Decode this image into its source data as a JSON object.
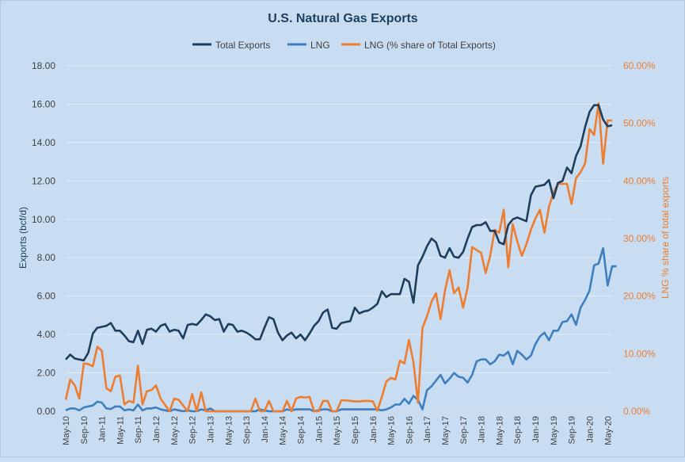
{
  "chart_data": {
    "type": "line",
    "title": "U.S. Natural Gas Exports",
    "ylabel": "Exports (bcf/d)",
    "y2label": "LNG  % share of total exports",
    "ylim": [
      0,
      18
    ],
    "y2lim": [
      0,
      0.6
    ],
    "yticks": [
      "0.00",
      "2.00",
      "4.00",
      "6.00",
      "8.00",
      "10.00",
      "12.00",
      "14.00",
      "16.00",
      "18.00"
    ],
    "y2ticks": [
      "0.00%",
      "10.00%",
      "20.00%",
      "30.00%",
      "40.00%",
      "50.00%",
      "60.00%"
    ],
    "grid": "horizontal",
    "legend_position": "top",
    "colors": {
      "total": "#1f3d5c",
      "lng": "#3f7fbf",
      "share": "#ed7d31",
      "grid": "#e4edf6",
      "axis_text": "#404040",
      "title": "#1f3d5c"
    },
    "x_tick_labels": [
      "May-10",
      "Sep-10",
      "Jan-11",
      "May-11",
      "Sep-11",
      "Jan-12",
      "May-12",
      "Sep-12",
      "Jan-13",
      "May-13",
      "Sep-13",
      "Jan-14",
      "May-14",
      "Sep-14",
      "Jan-15",
      "May-15",
      "Sep-15",
      "Jan-16",
      "May-16",
      "Sep-16",
      "Jan-17",
      "May-17",
      "Sep-17",
      "Jan-18",
      "May-18",
      "Sep-18",
      "Jan-19",
      "May-19",
      "Sep-19",
      "Jan-20",
      "May-20"
    ],
    "series": [
      {
        "name": "Total Exports",
        "axis": "left",
        "values": [
          2.7,
          2.95,
          2.75,
          2.7,
          2.65,
          3.05,
          4.05,
          4.35,
          4.4,
          4.45,
          4.6,
          4.2,
          4.2,
          3.95,
          3.65,
          3.6,
          4.2,
          3.5,
          4.25,
          4.3,
          4.15,
          4.45,
          4.55,
          4.15,
          4.25,
          4.2,
          3.8,
          4.5,
          4.55,
          4.5,
          4.75,
          5.05,
          4.95,
          4.75,
          4.8,
          4.15,
          4.55,
          4.5,
          4.15,
          4.2,
          4.1,
          3.95,
          3.75,
          3.75,
          4.35,
          4.9,
          4.8,
          4.1,
          3.7,
          3.95,
          4.1,
          3.8,
          4.0,
          3.7,
          4.05,
          4.45,
          4.7,
          5.15,
          5.3,
          4.35,
          4.3,
          4.6,
          4.65,
          4.7,
          5.4,
          5.1,
          5.2,
          5.25,
          5.4,
          5.6,
          6.25,
          5.95,
          6.1,
          6.1,
          6.1,
          6.9,
          6.75,
          5.65,
          7.6,
          8.05,
          8.6,
          9.0,
          8.8,
          8.1,
          8.0,
          8.5,
          8.05,
          8.0,
          8.3,
          9.0,
          9.6,
          9.7,
          9.7,
          9.85,
          9.4,
          9.4,
          8.8,
          8.7,
          9.7,
          10.0,
          10.1,
          10.0,
          9.9,
          11.25,
          11.7,
          11.75,
          11.8,
          12.05,
          11.1,
          11.9,
          12.0,
          12.7,
          12.4,
          13.3,
          13.8,
          14.8,
          15.6,
          15.95,
          15.95,
          15.2,
          14.85,
          14.9
        ]
      },
      {
        "name": "LNG",
        "axis": "left",
        "values": [
          0.05,
          0.15,
          0.15,
          0.05,
          0.2,
          0.25,
          0.3,
          0.5,
          0.45,
          0.15,
          0.12,
          0.25,
          0.25,
          0.05,
          0.1,
          0.05,
          0.35,
          0.05,
          0.15,
          0.15,
          0.2,
          0.1,
          0.05,
          0.0,
          0.1,
          0.05,
          0.0,
          0.05,
          0.0,
          0.0,
          0.1,
          0.05,
          0.15,
          0.0,
          0.0,
          0.0,
          0.0,
          0.0,
          0.0,
          0.0,
          0.0,
          0.0,
          0.0,
          0.1,
          0.05,
          0.0,
          0.0,
          0.0,
          0.0,
          0.1,
          0.05,
          0.1,
          0.1,
          0.1,
          0.1,
          0.0,
          0.05,
          0.1,
          0.1,
          0.0,
          0.0,
          0.1,
          0.1,
          0.1,
          0.1,
          0.1,
          0.1,
          0.1,
          0.1,
          0.1,
          0.05,
          0.1,
          0.2,
          0.35,
          0.35,
          0.65,
          0.4,
          0.8,
          0.6,
          0.1,
          1.1,
          1.3,
          1.6,
          1.9,
          1.45,
          1.7,
          2.0,
          1.8,
          1.75,
          1.5,
          1.9,
          2.6,
          2.7,
          2.7,
          2.45,
          2.6,
          2.95,
          2.9,
          3.1,
          2.45,
          3.15,
          2.95,
          2.7,
          2.9,
          3.5,
          3.9,
          4.1,
          3.7,
          4.2,
          4.2,
          4.65,
          4.7,
          5.05,
          4.5,
          5.4,
          5.8,
          6.3,
          7.6,
          7.7,
          8.5,
          6.55,
          7.55,
          7.55
        ]
      },
      {
        "name": "LNG (% share of Total Exports)",
        "axis": "right",
        "values": [
          0.02,
          0.055,
          0.045,
          0.022,
          0.083,
          0.082,
          0.078,
          0.112,
          0.105,
          0.04,
          0.035,
          0.06,
          0.062,
          0.012,
          0.018,
          0.015,
          0.079,
          0.012,
          0.035,
          0.037,
          0.045,
          0.022,
          0.011,
          0.0,
          0.022,
          0.02,
          0.01,
          0.0,
          0.03,
          0.0,
          0.033,
          0.0,
          0.0,
          0.0,
          0.0,
          0.0,
          0.0,
          0.0,
          0.0,
          0.0,
          0.0,
          0.0,
          0.022,
          0.0,
          0.0,
          0.018,
          0.0,
          0.0,
          0.0,
          0.018,
          0.0,
          0.022,
          0.025,
          0.024,
          0.025,
          0.0,
          0.0,
          0.018,
          0.018,
          0.0,
          0.0,
          0.019,
          0.019,
          0.018,
          0.017,
          0.017,
          0.018,
          0.018,
          0.017,
          0.001,
          0.025,
          0.052,
          0.058,
          0.055,
          0.088,
          0.083,
          0.124,
          0.085,
          0.015,
          0.145,
          0.165,
          0.19,
          0.205,
          0.16,
          0.21,
          0.245,
          0.205,
          0.215,
          0.18,
          0.215,
          0.285,
          0.28,
          0.275,
          0.24,
          0.27,
          0.315,
          0.31,
          0.35,
          0.25,
          0.325,
          0.295,
          0.27,
          0.29,
          0.315,
          0.335,
          0.35,
          0.31,
          0.355,
          0.38,
          0.395,
          0.395,
          0.395,
          0.36,
          0.405,
          0.415,
          0.43,
          0.49,
          0.48,
          0.535,
          0.43,
          0.505,
          0.505
        ]
      }
    ]
  }
}
